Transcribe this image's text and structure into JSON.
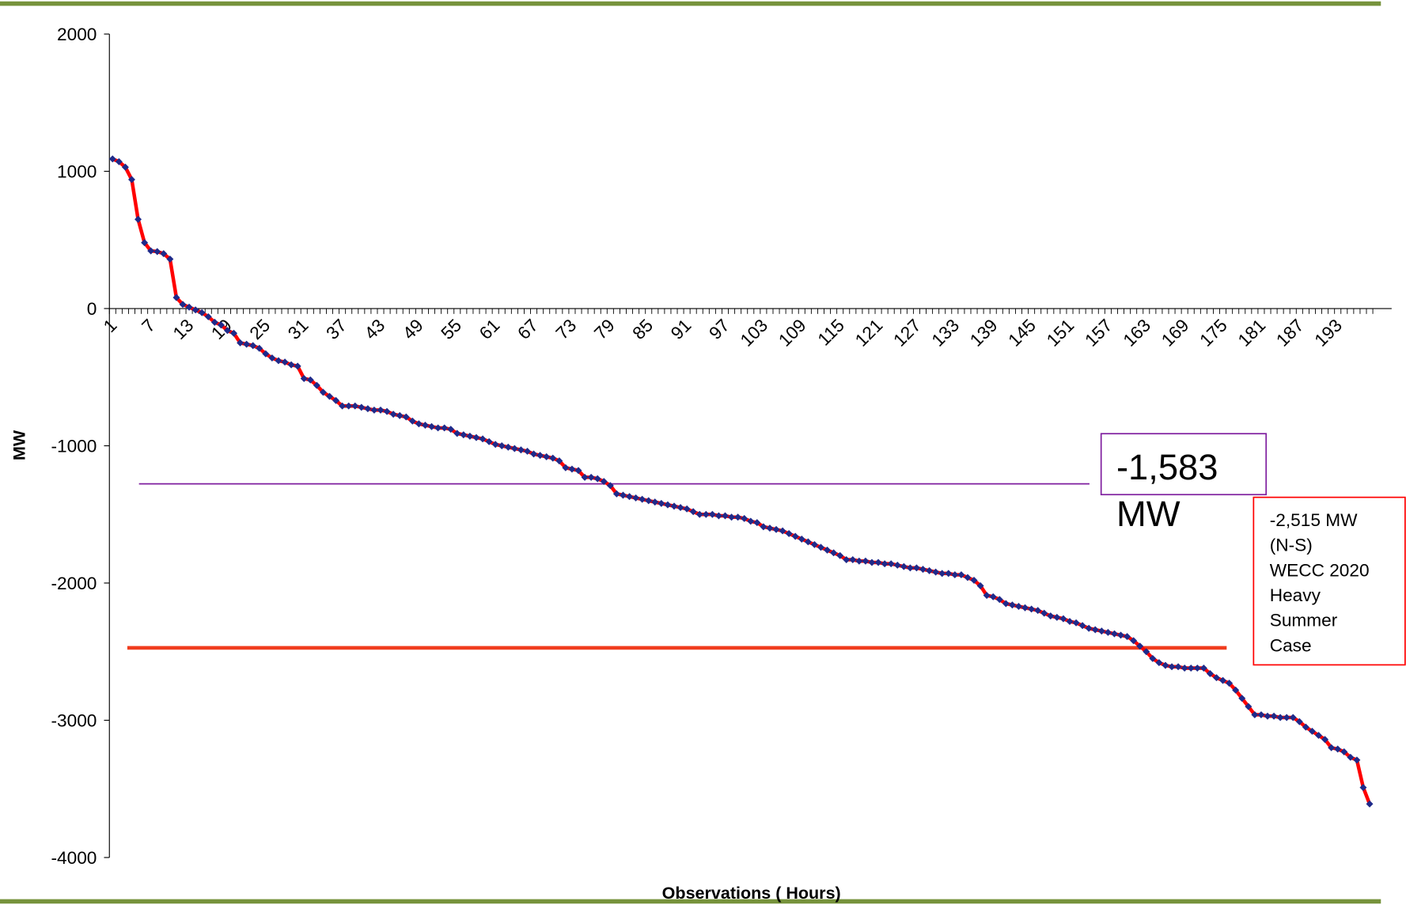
{
  "chart_data": {
    "type": "line",
    "x_label": "Observations  ( Hours)",
    "y_label": "MW",
    "categories": [
      "1",
      null,
      null,
      null,
      null,
      null,
      "7",
      null,
      null,
      null,
      null,
      null,
      "13",
      null,
      null,
      null,
      null,
      null,
      "19",
      null,
      null,
      null,
      null,
      null,
      "25",
      null,
      null,
      null,
      null,
      null,
      "31",
      null,
      null,
      null,
      null,
      null,
      "37",
      null,
      null,
      null,
      null,
      null,
      "43",
      null,
      null,
      null,
      null,
      null,
      "49",
      null,
      null,
      null,
      null,
      null,
      "55",
      null,
      null,
      null,
      null,
      null,
      "61",
      null,
      null,
      null,
      null,
      null,
      "67",
      null,
      null,
      null,
      null,
      null,
      "73",
      null,
      null,
      null,
      null,
      null,
      "79",
      null,
      null,
      null,
      null,
      null,
      "85",
      null,
      null,
      null,
      null,
      null,
      "91",
      null,
      null,
      null,
      null,
      null,
      "97",
      null,
      null,
      null,
      null,
      null,
      "103",
      null,
      null,
      null,
      null,
      null,
      "109",
      null,
      null,
      null,
      null,
      null,
      "115",
      null,
      null,
      null,
      null,
      null,
      "121",
      null,
      null,
      null,
      null,
      null,
      "127",
      null,
      null,
      null,
      null,
      null,
      "133",
      null,
      null,
      null,
      null,
      null,
      "139",
      null,
      null,
      null,
      null,
      null,
      "145",
      null,
      null,
      null,
      null,
      null,
      "151",
      null,
      null,
      null,
      null,
      null,
      "157",
      null,
      null,
      null,
      null,
      null,
      "163",
      null,
      null,
      null,
      null,
      null,
      "169",
      null,
      null,
      null,
      null,
      null,
      "175",
      null,
      null,
      null,
      null,
      null,
      "181",
      null,
      null,
      null,
      null,
      null,
      "187",
      null,
      null,
      null,
      null,
      null,
      "193",
      null,
      null,
      null,
      null,
      null
    ],
    "series": [
      {
        "name": "MW",
        "color": "#ff0000",
        "marker_color": "#1f2a8a",
        "values": [
          1090,
          1070,
          1030,
          940,
          650,
          480,
          420,
          415,
          400,
          360,
          80,
          30,
          10,
          -10,
          -30,
          -60,
          -100,
          -120,
          -160,
          -180,
          -250,
          -260,
          -270,
          -290,
          -330,
          -360,
          -380,
          -390,
          -410,
          -420,
          -510,
          -520,
          -560,
          -610,
          -640,
          -670,
          -710,
          -710,
          -710,
          -720,
          -730,
          -740,
          -740,
          -750,
          -770,
          -780,
          -790,
          -820,
          -840,
          -850,
          -860,
          -870,
          -870,
          -880,
          -910,
          -920,
          -930,
          -940,
          -950,
          -970,
          -990,
          -1000,
          -1010,
          -1020,
          -1030,
          -1040,
          -1060,
          -1070,
          -1080,
          -1090,
          -1110,
          -1160,
          -1170,
          -1180,
          -1230,
          -1230,
          -1240,
          -1260,
          -1290,
          -1350,
          -1360,
          -1370,
          -1380,
          -1390,
          -1400,
          -1410,
          -1420,
          -1430,
          -1440,
          -1450,
          -1460,
          -1480,
          -1500,
          -1500,
          -1500,
          -1510,
          -1510,
          -1520,
          -1520,
          -1530,
          -1550,
          -1560,
          -1590,
          -1600,
          -1610,
          -1620,
          -1640,
          -1660,
          -1680,
          -1700,
          -1720,
          -1740,
          -1760,
          -1780,
          -1800,
          -1830,
          -1830,
          -1840,
          -1840,
          -1850,
          -1850,
          -1860,
          -1860,
          -1870,
          -1880,
          -1890,
          -1890,
          -1900,
          -1910,
          -1920,
          -1930,
          -1930,
          -1940,
          -1940,
          -1960,
          -1980,
          -2020,
          -2090,
          -2100,
          -2120,
          -2150,
          -2160,
          -2170,
          -2180,
          -2190,
          -2200,
          -2220,
          -2240,
          -2250,
          -2260,
          -2280,
          -2290,
          -2310,
          -2330,
          -2340,
          -2350,
          -2360,
          -2370,
          -2380,
          -2390,
          -2420,
          -2460,
          -2500,
          -2550,
          -2580,
          -2600,
          -2610,
          -2610,
          -2620,
          -2620,
          -2620,
          -2620,
          -2660,
          -2690,
          -2710,
          -2730,
          -2780,
          -2840,
          -2900,
          -2960,
          -2960,
          -2970,
          -2970,
          -2980,
          -2980,
          -2980,
          -3010,
          -3050,
          -3080,
          -3110,
          -3140,
          -3200,
          -3210,
          -3230,
          -3270,
          -3290,
          -3490,
          -3610
        ]
      }
    ],
    "ylim": [
      -4000,
      2000
    ],
    "yticks": [
      -4000,
      -3000,
      -2000,
      -1000,
      0,
      1000,
      2000
    ],
    "grid": false,
    "annotations": [
      {
        "lines": [
          "-1,583",
          "MW"
        ]
      },
      {
        "lines": [
          "-2,515 MW",
          "(N-S)",
          "WECC 2020",
          "Heavy",
          "Summer",
          "Case"
        ]
      }
    ]
  }
}
